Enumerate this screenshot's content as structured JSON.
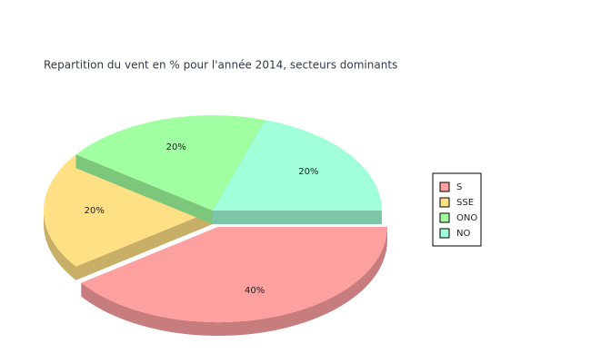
{
  "chart_data": {
    "type": "pie3d",
    "title": "Repartition du vent en % pour l'année 2014, secteurs dominants",
    "categories": [
      "S",
      "SSE",
      "ONO",
      "NO"
    ],
    "values": [
      40,
      20,
      20,
      20
    ],
    "value_labels": [
      "40%",
      "20%",
      "20%",
      "20%"
    ],
    "colors": [
      "#ffa0a0",
      "#ffe084",
      "#a0ffa0",
      "#a0ffd8"
    ],
    "exploded": [
      true,
      false,
      false,
      false
    ]
  }
}
